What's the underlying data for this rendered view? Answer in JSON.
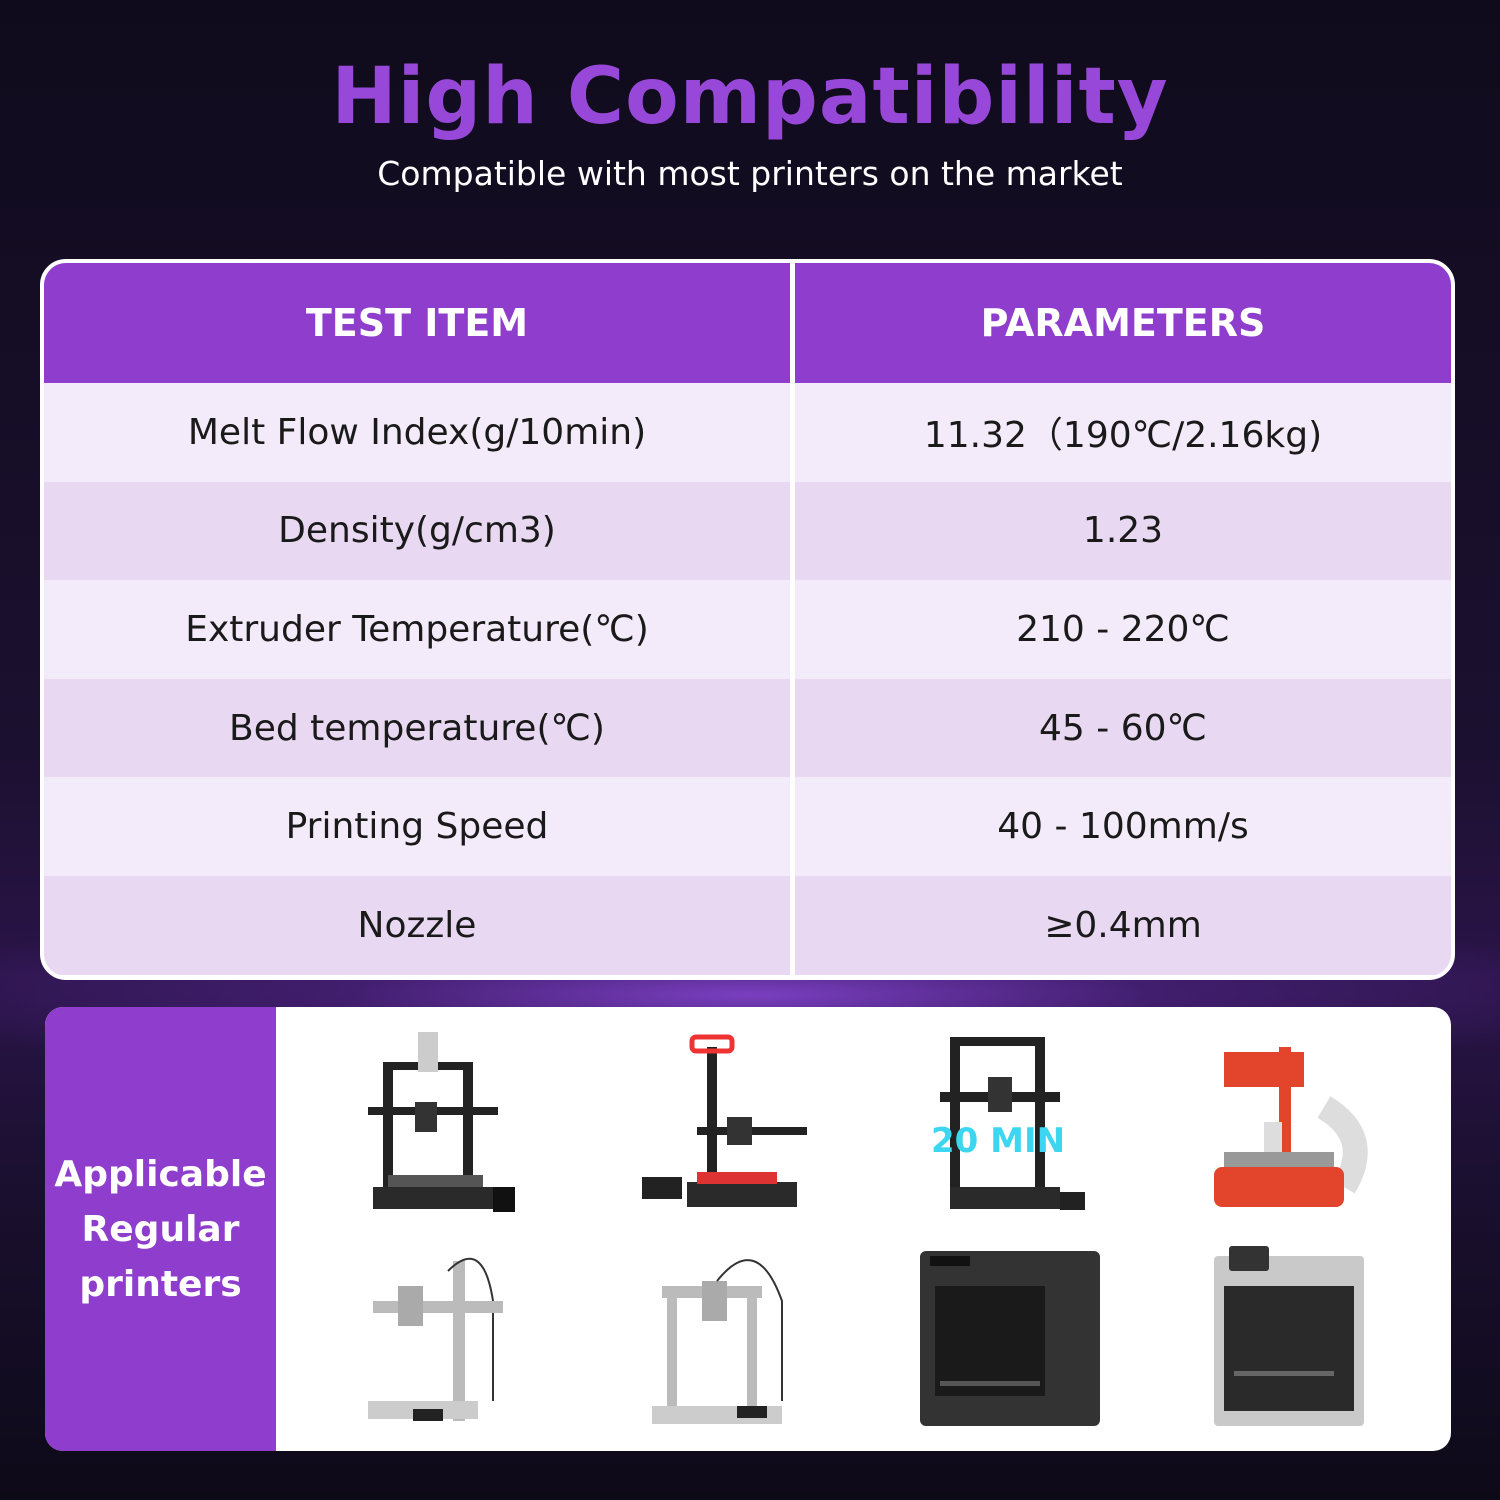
{
  "header": {
    "title": "High Compatibility",
    "subtitle": "Compatible with most printers on the market"
  },
  "table": {
    "columns": [
      "TEST ITEM",
      "PARAMETERS"
    ],
    "rows": [
      [
        "Melt Flow Index(g/10min)",
        "11.32（190℃/2.16kg)"
      ],
      [
        "Density(g/cm3)",
        "1.23"
      ],
      [
        "Extruder Temperature(℃)",
        "210 - 220℃"
      ],
      [
        "Bed temperature(℃)",
        "45 - 60℃"
      ],
      [
        "Printing Speed",
        "40 - 100mm/s"
      ],
      [
        "Nozzle",
        "≥0.4mm"
      ]
    ]
  },
  "printers": {
    "label": "Applicable Regular printers",
    "image_text": "20 MIN",
    "colors": {
      "accent": "#8f3dcc",
      "title": "#9848d8"
    }
  }
}
